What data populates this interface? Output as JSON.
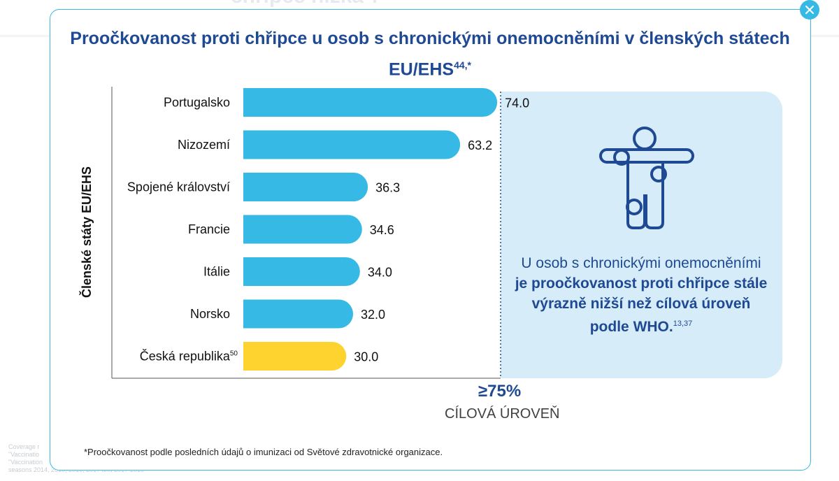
{
  "background": {
    "heading_fragment": "chřipce nízká*.",
    "footnote_fragments": "Coverage r\n\"Vaccinatio\n\"Vaccination\nseasons 2014, 2015, 2016, 2017 and 2017-2018"
  },
  "modal": {
    "close_icon": "close-icon",
    "title": "Proočkovanost proti chřipce u osob s chronickými onemocněními v členských státech EU/EHS",
    "title_sup": "44,*",
    "info": {
      "icon": "person-joints-icon",
      "text_normal": "U osob s chronickými onemocněními",
      "text_bold": "je proočkovanost proti chřipce stále výrazně nižší než cílová úroveň podle WHO.",
      "text_sup": "13,37"
    },
    "target": {
      "value": "≥75%",
      "label": "CÍLOVÁ ÚROVEŇ"
    },
    "footnote": "*Proočkovanost podle posledních údajů o imunizaci od Světové zdravotnické organizace."
  },
  "colors": {
    "bar": "#36b9e4",
    "highlight": "#fed22f",
    "title": "#1f4a93",
    "panel": "#d6ecf9"
  },
  "chart_data": {
    "type": "bar",
    "orientation": "horizontal",
    "categories": [
      "Portugalsko",
      "Nizozemí",
      "Spojené království",
      "Francie",
      "Itálie",
      "Norsko",
      "Česká republika"
    ],
    "category_sups": [
      "",
      "",
      "",
      "",
      "",
      "",
      "50"
    ],
    "values": [
      74.0,
      63.2,
      36.3,
      34.6,
      34.0,
      32.0,
      30.0
    ],
    "value_labels": [
      "74.0",
      "63.2",
      "36.3",
      "34.6",
      "34.0",
      "32.0",
      "30.0"
    ],
    "highlight_index": 6,
    "ylabel": "Členské státy EU/EHS",
    "xlabel": "",
    "xlim": [
      0,
      75
    ],
    "target_line": 75,
    "grid": false,
    "legend": "none"
  }
}
